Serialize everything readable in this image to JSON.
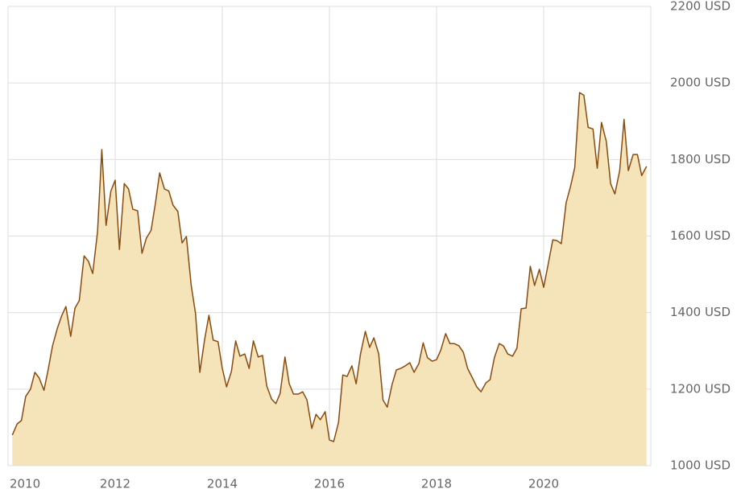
{
  "chart_data": {
    "type": "area",
    "x": [
      2010.08,
      2010.17,
      2010.25,
      2010.33,
      2010.42,
      2010.5,
      2010.58,
      2010.67,
      2010.75,
      2010.83,
      2010.92,
      2011,
      2011.08,
      2011.17,
      2011.25,
      2011.33,
      2011.42,
      2011.5,
      2011.58,
      2011.67,
      2011.75,
      2011.83,
      2011.92,
      2012,
      2012.08,
      2012.17,
      2012.25,
      2012.33,
      2012.42,
      2012.5,
      2012.58,
      2012.67,
      2012.75,
      2012.83,
      2012.92,
      2013,
      2013.08,
      2013.17,
      2013.25,
      2013.33,
      2013.42,
      2013.5,
      2013.58,
      2013.67,
      2013.75,
      2013.83,
      2013.92,
      2014,
      2014.08,
      2014.17,
      2014.25,
      2014.33,
      2014.42,
      2014.5,
      2014.58,
      2014.67,
      2014.75,
      2014.83,
      2014.92,
      2015,
      2015.08,
      2015.17,
      2015.25,
      2015.33,
      2015.42,
      2015.5,
      2015.58,
      2015.67,
      2015.75,
      2015.83,
      2015.92,
      2016,
      2016.08,
      2016.17,
      2016.25,
      2016.33,
      2016.42,
      2016.5,
      2016.58,
      2016.67,
      2016.75,
      2016.83,
      2016.92,
      2017,
      2017.08,
      2017.17,
      2017.25,
      2017.33,
      2017.42,
      2017.5,
      2017.58,
      2017.67,
      2017.75,
      2017.83,
      2017.92,
      2018,
      2018.08,
      2018.17,
      2018.25,
      2018.33,
      2018.42,
      2018.5,
      2018.58,
      2018.67,
      2018.75,
      2018.83,
      2018.92,
      2019,
      2019.08,
      2019.17,
      2019.25,
      2019.33,
      2019.42,
      2019.5,
      2019.58,
      2019.67,
      2019.75,
      2019.83,
      2019.92,
      2020,
      2020.08,
      2020.17,
      2020.25,
      2020.33,
      2020.42,
      2020.5,
      2020.58,
      2020.67,
      2020.75,
      2020.83,
      2020.92,
      2021,
      2021.08,
      2021.17,
      2021.25,
      2021.33,
      2021.42,
      2021.5,
      2021.58,
      2021.67,
      2021.75,
      2021.83,
      2021.92
    ],
    "values": [
      1080,
      1109,
      1118,
      1181,
      1200,
      1244,
      1229,
      1197,
      1252,
      1313,
      1359,
      1391,
      1416,
      1338,
      1412,
      1431,
      1548,
      1534,
      1502,
      1611,
      1826,
      1628,
      1718,
      1746,
      1565,
      1737,
      1723,
      1670,
      1666,
      1555,
      1594,
      1615,
      1685,
      1765,
      1723,
      1718,
      1681,
      1664,
      1582,
      1599,
      1471,
      1397,
      1244,
      1330,
      1393,
      1328,
      1324,
      1254,
      1206,
      1246,
      1326,
      1286,
      1292,
      1254,
      1326,
      1284,
      1288,
      1208,
      1174,
      1162,
      1189,
      1284,
      1214,
      1187,
      1187,
      1193,
      1172,
      1097,
      1134,
      1120,
      1141,
      1067,
      1063,
      1113,
      1237,
      1233,
      1261,
      1214,
      1292,
      1351,
      1309,
      1334,
      1292,
      1172,
      1153,
      1212,
      1250,
      1254,
      1261,
      1269,
      1244,
      1267,
      1321,
      1282,
      1273,
      1277,
      1302,
      1345,
      1319,
      1319,
      1313,
      1296,
      1254,
      1229,
      1206,
      1193,
      1216,
      1225,
      1282,
      1319,
      1313,
      1292,
      1286,
      1307,
      1410,
      1412,
      1521,
      1471,
      1513,
      1466,
      1523,
      1590,
      1588,
      1580,
      1687,
      1729,
      1779,
      1975,
      1968,
      1884,
      1880,
      1777,
      1897,
      1847,
      1737,
      1710,
      1771,
      1905,
      1771,
      1813,
      1813,
      1758,
      1782
    ],
    "color": "#8a4b0f",
    "fill_color": "#f5e3b9",
    "xlim": [
      2010,
      2022
    ],
    "xticks": [
      2010,
      2012,
      2014,
      2016,
      2018,
      2020
    ],
    "ylim": [
      1000,
      2200
    ],
    "yticks": [
      {
        "value": 1000,
        "label": "1000 USD"
      },
      {
        "value": 1200,
        "label": "1200 USD"
      },
      {
        "value": 1400,
        "label": "1400 USD"
      },
      {
        "value": 1600,
        "label": "1600 USD"
      },
      {
        "value": 1800,
        "label": "1800 USD"
      },
      {
        "value": 2000,
        "label": "2000 USD"
      },
      {
        "value": 2200,
        "label": "2200 USD"
      }
    ],
    "grid": true
  }
}
